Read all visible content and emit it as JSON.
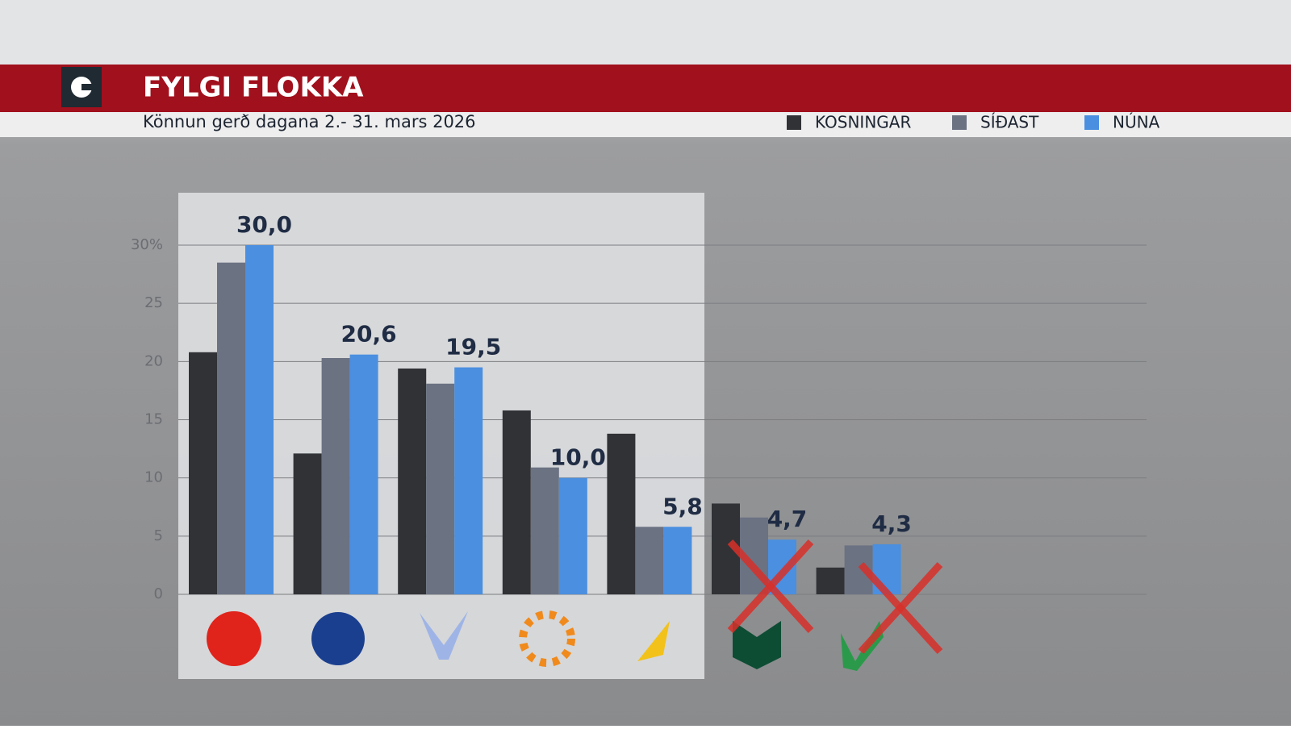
{
  "chart_data": {
    "type": "bar",
    "title": "FYLGI FLOKKA",
    "subtitle": "Könnun gerð dagana 2.- 31. mars 2026",
    "categories": [
      null,
      null,
      null,
      null,
      null,
      null,
      null
    ],
    "series": [
      {
        "name": "KOSNINGAR",
        "color": "#303236",
        "values": [
          20.8,
          12.1,
          19.4,
          15.8,
          13.8,
          7.8,
          2.3
        ]
      },
      {
        "name": "SÍÐAST",
        "color": "#6b7282",
        "values": [
          28.5,
          20.3,
          18.1,
          10.9,
          5.8,
          6.6,
          4.2
        ]
      },
      {
        "name": "NÚNA",
        "color": "#4a8fe0",
        "values": [
          30.0,
          20.6,
          19.5,
          10.0,
          5.8,
          4.7,
          4.3
        ],
        "value_labels": [
          "30,0",
          "20,6",
          "19,5",
          "10,0",
          "5,8",
          "4,7",
          "4,3"
        ]
      }
    ],
    "ylim": [
      0,
      30
    ],
    "yticks": [
      0,
      5,
      10,
      15,
      20,
      25,
      {
        "value": 30,
        "label": "30%"
      }
    ],
    "grid": true,
    "legend": "top-right"
  }
}
